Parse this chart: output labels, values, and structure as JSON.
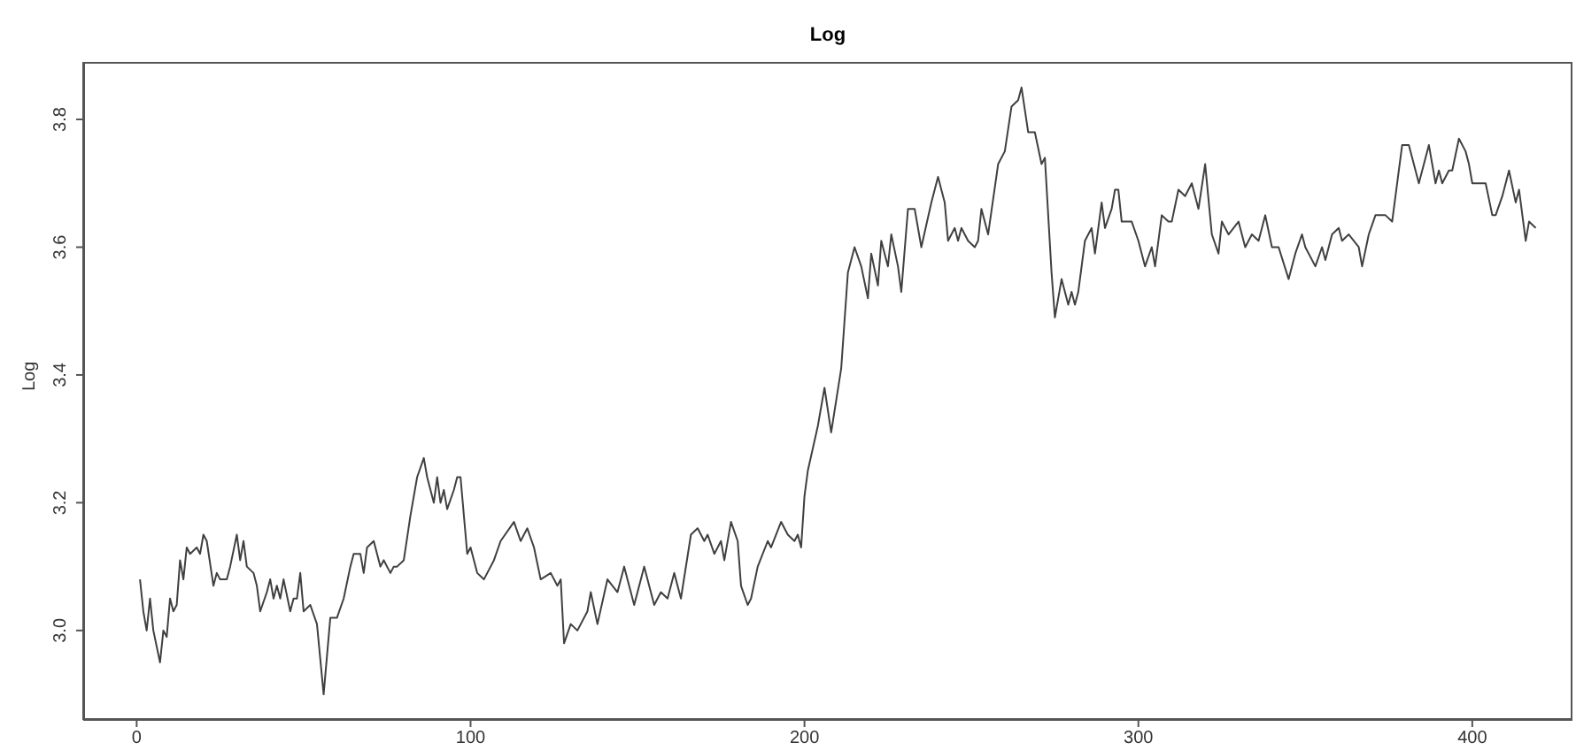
{
  "chart_data": {
    "type": "line",
    "title": "Log",
    "ylabel": "Log",
    "xlim": [
      -16,
      430
    ],
    "ylim": [
      2.86,
      3.89
    ],
    "xticks": [
      0,
      100,
      200,
      300,
      400
    ],
    "yticks": [
      {
        "value": 3.0,
        "label": "3.0"
      },
      {
        "value": 3.2,
        "label": "3.2"
      },
      {
        "value": 3.4,
        "label": "3.4"
      },
      {
        "value": 3.6,
        "label": "3.6"
      },
      {
        "value": 3.8,
        "label": "3.8"
      }
    ],
    "grid": false,
    "legend": false,
    "marker": "none",
    "line_style": "solid",
    "x": [
      1,
      2,
      3,
      4,
      5,
      7,
      8,
      9,
      10,
      11,
      12,
      13,
      14,
      15,
      16,
      18,
      19,
      20,
      21,
      23,
      24,
      25,
      27,
      28,
      30,
      31,
      32,
      33,
      35,
      36,
      37,
      39,
      40,
      41,
      42,
      43,
      44,
      46,
      47,
      48,
      49,
      50,
      52,
      54,
      56,
      58,
      60,
      62,
      64,
      65,
      67,
      68,
      69,
      71,
      73,
      74,
      76,
      77,
      78,
      80,
      82,
      84,
      86,
      87,
      89,
      90,
      91,
      92,
      93,
      95,
      96,
      97,
      99,
      100,
      102,
      104,
      105,
      107,
      109,
      113,
      115,
      117,
      119,
      121,
      124,
      126,
      127,
      128,
      130,
      132,
      135,
      136,
      138,
      141,
      144,
      146,
      149,
      152,
      155,
      157,
      159,
      161,
      163,
      166,
      168,
      170,
      171,
      173,
      175,
      176,
      178,
      180,
      181,
      183,
      184,
      186,
      189,
      190,
      193,
      195,
      197,
      198,
      199,
      200,
      201,
      204,
      206,
      208,
      211,
      213,
      215,
      217,
      219,
      220,
      222,
      223,
      225,
      226,
      228,
      229,
      231,
      233,
      235,
      238,
      240,
      242,
      243,
      245,
      246,
      247,
      249,
      251,
      252,
      253,
      255,
      258,
      260,
      262,
      264,
      265,
      267,
      269,
      271,
      272,
      274,
      275,
      277,
      279,
      280,
      281,
      282,
      284,
      286,
      287,
      289,
      290,
      292,
      293,
      294,
      295,
      298,
      300,
      302,
      304,
      305,
      307,
      309,
      310,
      312,
      314,
      316,
      318,
      320,
      322,
      324,
      325,
      327,
      330,
      332,
      334,
      336,
      338,
      340,
      342,
      345,
      347,
      349,
      350,
      353,
      355,
      356,
      358,
      360,
      361,
      363,
      366,
      367,
      369,
      371,
      374,
      376,
      377,
      379,
      381,
      384,
      387,
      389,
      390,
      391,
      393,
      394,
      396,
      398,
      399,
      400,
      403,
      404,
      406,
      407,
      409,
      411,
      413,
      414,
      415,
      416,
      417,
      419
    ],
    "series": [
      {
        "color": "#404040",
        "values": [
          3.08,
          3.03,
          3.0,
          3.05,
          3.0,
          2.95,
          3.0,
          2.99,
          3.05,
          3.03,
          3.04,
          3.11,
          3.08,
          3.13,
          3.12,
          3.13,
          3.12,
          3.15,
          3.14,
          3.07,
          3.09,
          3.08,
          3.08,
          3.1,
          3.15,
          3.11,
          3.14,
          3.1,
          3.09,
          3.07,
          3.03,
          3.06,
          3.08,
          3.05,
          3.07,
          3.05,
          3.08,
          3.03,
          3.05,
          3.05,
          3.09,
          3.03,
          3.04,
          3.01,
          2.9,
          3.02,
          3.02,
          3.05,
          3.1,
          3.12,
          3.12,
          3.09,
          3.13,
          3.14,
          3.1,
          3.11,
          3.09,
          3.1,
          3.1,
          3.11,
          3.18,
          3.24,
          3.27,
          3.24,
          3.2,
          3.24,
          3.2,
          3.22,
          3.19,
          3.22,
          3.24,
          3.24,
          3.12,
          3.13,
          3.09,
          3.08,
          3.09,
          3.11,
          3.14,
          3.17,
          3.14,
          3.16,
          3.13,
          3.08,
          3.09,
          3.07,
          3.08,
          2.98,
          3.01,
          3.0,
          3.03,
          3.06,
          3.01,
          3.08,
          3.06,
          3.1,
          3.04,
          3.1,
          3.04,
          3.06,
          3.05,
          3.09,
          3.05,
          3.15,
          3.16,
          3.14,
          3.15,
          3.12,
          3.14,
          3.11,
          3.17,
          3.14,
          3.07,
          3.04,
          3.05,
          3.1,
          3.14,
          3.13,
          3.17,
          3.15,
          3.14,
          3.15,
          3.13,
          3.21,
          3.25,
          3.32,
          3.38,
          3.31,
          3.41,
          3.56,
          3.6,
          3.57,
          3.52,
          3.59,
          3.54,
          3.61,
          3.57,
          3.62,
          3.57,
          3.53,
          3.66,
          3.66,
          3.6,
          3.67,
          3.71,
          3.67,
          3.61,
          3.63,
          3.61,
          3.63,
          3.61,
          3.6,
          3.61,
          3.66,
          3.62,
          3.73,
          3.75,
          3.82,
          3.83,
          3.85,
          3.78,
          3.78,
          3.73,
          3.74,
          3.56,
          3.49,
          3.55,
          3.51,
          3.53,
          3.51,
          3.53,
          3.61,
          3.63,
          3.59,
          3.67,
          3.63,
          3.66,
          3.69,
          3.69,
          3.64,
          3.64,
          3.61,
          3.57,
          3.6,
          3.57,
          3.65,
          3.64,
          3.64,
          3.69,
          3.68,
          3.7,
          3.66,
          3.73,
          3.62,
          3.59,
          3.64,
          3.62,
          3.64,
          3.6,
          3.62,
          3.61,
          3.65,
          3.6,
          3.6,
          3.55,
          3.59,
          3.62,
          3.6,
          3.57,
          3.6,
          3.58,
          3.62,
          3.63,
          3.61,
          3.62,
          3.6,
          3.57,
          3.62,
          3.65,
          3.65,
          3.64,
          3.68,
          3.76,
          3.76,
          3.7,
          3.76,
          3.7,
          3.72,
          3.7,
          3.72,
          3.72,
          3.77,
          3.75,
          3.73,
          3.7,
          3.7,
          3.7,
          3.65,
          3.65,
          3.68,
          3.72,
          3.67,
          3.69,
          3.65,
          3.61,
          3.64,
          3.63
        ]
      }
    ]
  }
}
